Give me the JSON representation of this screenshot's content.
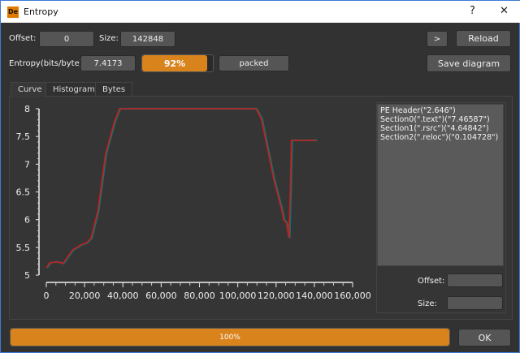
{
  "window": {
    "title": "Entropy",
    "logo_text": "De",
    "help": "?",
    "close": "✕"
  },
  "top": {
    "offset_label": "Offset:",
    "offset_value": "0",
    "size_label": "Size:",
    "size_value": "142848",
    "next_label": ">",
    "reload_label": "Reload",
    "entropy_label": "Entropy(bits/byte):",
    "entropy_value": "7.4173",
    "percent": 92,
    "percent_label": "92%",
    "status": "packed",
    "save_label": "Save diagram"
  },
  "tabs": [
    {
      "label": "Curve",
      "active": true
    },
    {
      "label": "Histogram"
    },
    {
      "label": "Bytes"
    }
  ],
  "sections": [
    "PE Header(\"2.646\")",
    "Section0(\".text\")(\"7.46587\")",
    "Section1(\".rsrc\")(\"4.64842\")",
    "Section2(\".reloc\")(\"0.104728\")"
  ],
  "side": {
    "offset_label": "Offset:",
    "offset_value": "",
    "size_label": "Size:",
    "size_value": ""
  },
  "footer": {
    "progress": 100,
    "progress_label": "100%",
    "ok_label": "OK"
  },
  "colors": {
    "accent": "#d9831d",
    "line": "#d01a1a",
    "background": "#323232"
  },
  "chart_data": {
    "type": "line",
    "xlim": [
      0,
      160000
    ],
    "ylim": [
      5,
      8
    ],
    "xticks": [
      "0",
      "20,000",
      "40,000",
      "60,000",
      "80,000",
      "100,000",
      "120,000",
      "140,000",
      "160,000"
    ],
    "yticks": [
      "5",
      "5.5",
      "6",
      "6.5",
      "7",
      "7.5",
      "8"
    ],
    "x": [
      0,
      1700,
      5200,
      8700,
      13600,
      17800,
      21300,
      23400,
      26900,
      30900,
      35400,
      38200,
      109500,
      112300,
      118700,
      122900,
      124000,
      125400,
      126700,
      127400,
      128000,
      141000
    ],
    "y": [
      5.13,
      5.22,
      5.24,
      5.21,
      5.45,
      5.54,
      5.59,
      5.67,
      6.16,
      7.18,
      7.75,
      8,
      8,
      7.82,
      6.74,
      6.18,
      5.99,
      5.94,
      5.67,
      6.55,
      7.43,
      7.43
    ]
  }
}
